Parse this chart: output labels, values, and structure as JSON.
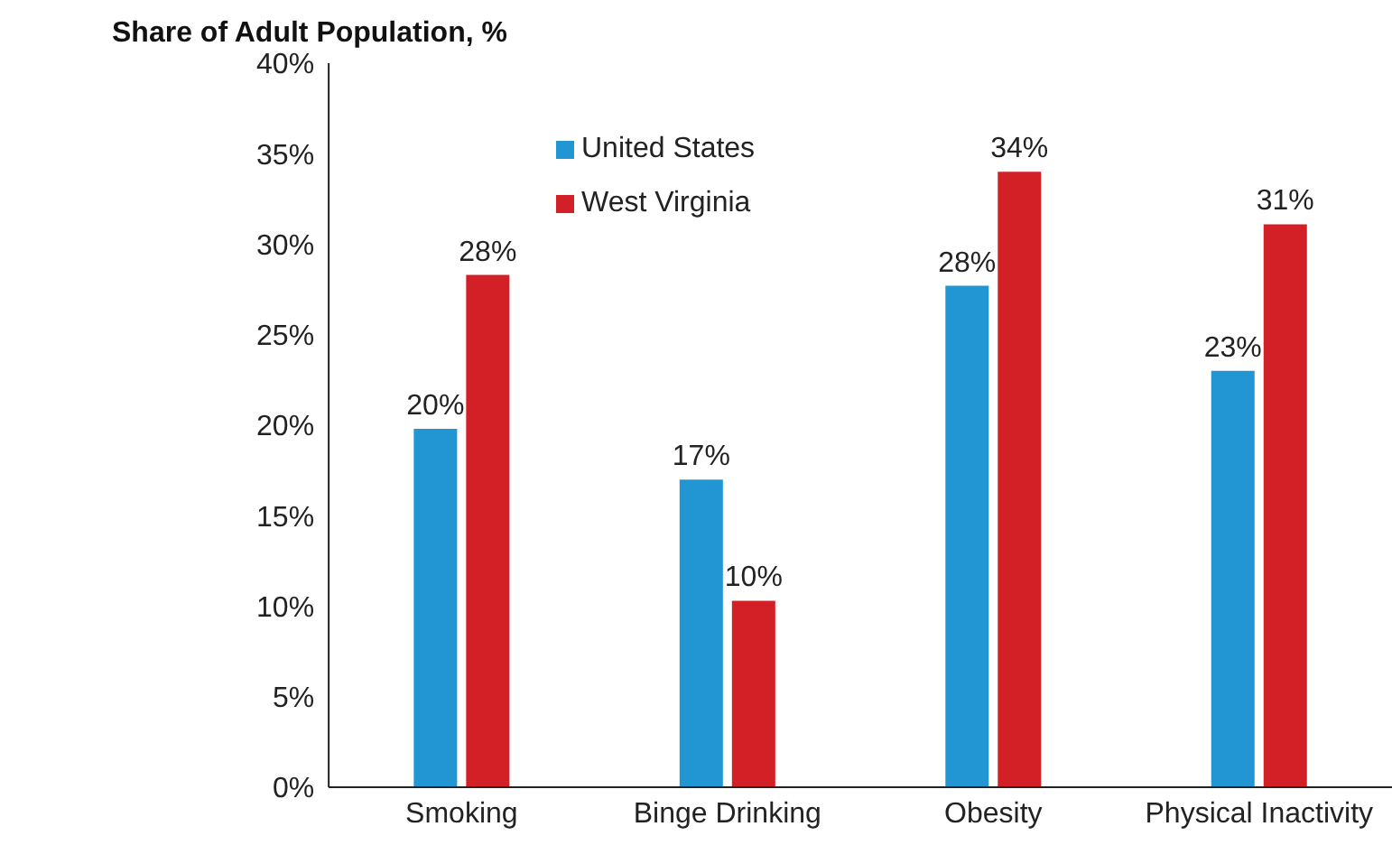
{
  "chart_data": {
    "type": "bar",
    "title": "Share of Adult Population, %",
    "categories": [
      "Smoking",
      "Binge Drinking",
      "Obesity",
      "Physical Inactivity"
    ],
    "series": [
      {
        "name": "United States",
        "color": "#2196d3",
        "values": [
          19.8,
          17,
          27.7,
          23
        ],
        "value_labels": [
          "20%",
          "17%",
          "28%",
          "23%"
        ]
      },
      {
        "name": "West Virginia",
        "color": "#d32027",
        "values": [
          28.3,
          10.3,
          34,
          31.1
        ],
        "value_labels": [
          "28%",
          "10%",
          "34%",
          "31%"
        ]
      }
    ],
    "ylim": [
      0,
      40
    ],
    "yticks": [
      {
        "value": 0,
        "label": "0%"
      },
      {
        "value": 5,
        "label": "5%"
      },
      {
        "value": 10,
        "label": "10%"
      },
      {
        "value": 15,
        "label": "15%"
      },
      {
        "value": 20,
        "label": "20%"
      },
      {
        "value": 25,
        "label": "25%"
      },
      {
        "value": 30,
        "label": "30%"
      },
      {
        "value": 35,
        "label": "35%"
      },
      {
        "value": 40,
        "label": "40%"
      }
    ],
    "grid": false,
    "legend": "top"
  }
}
